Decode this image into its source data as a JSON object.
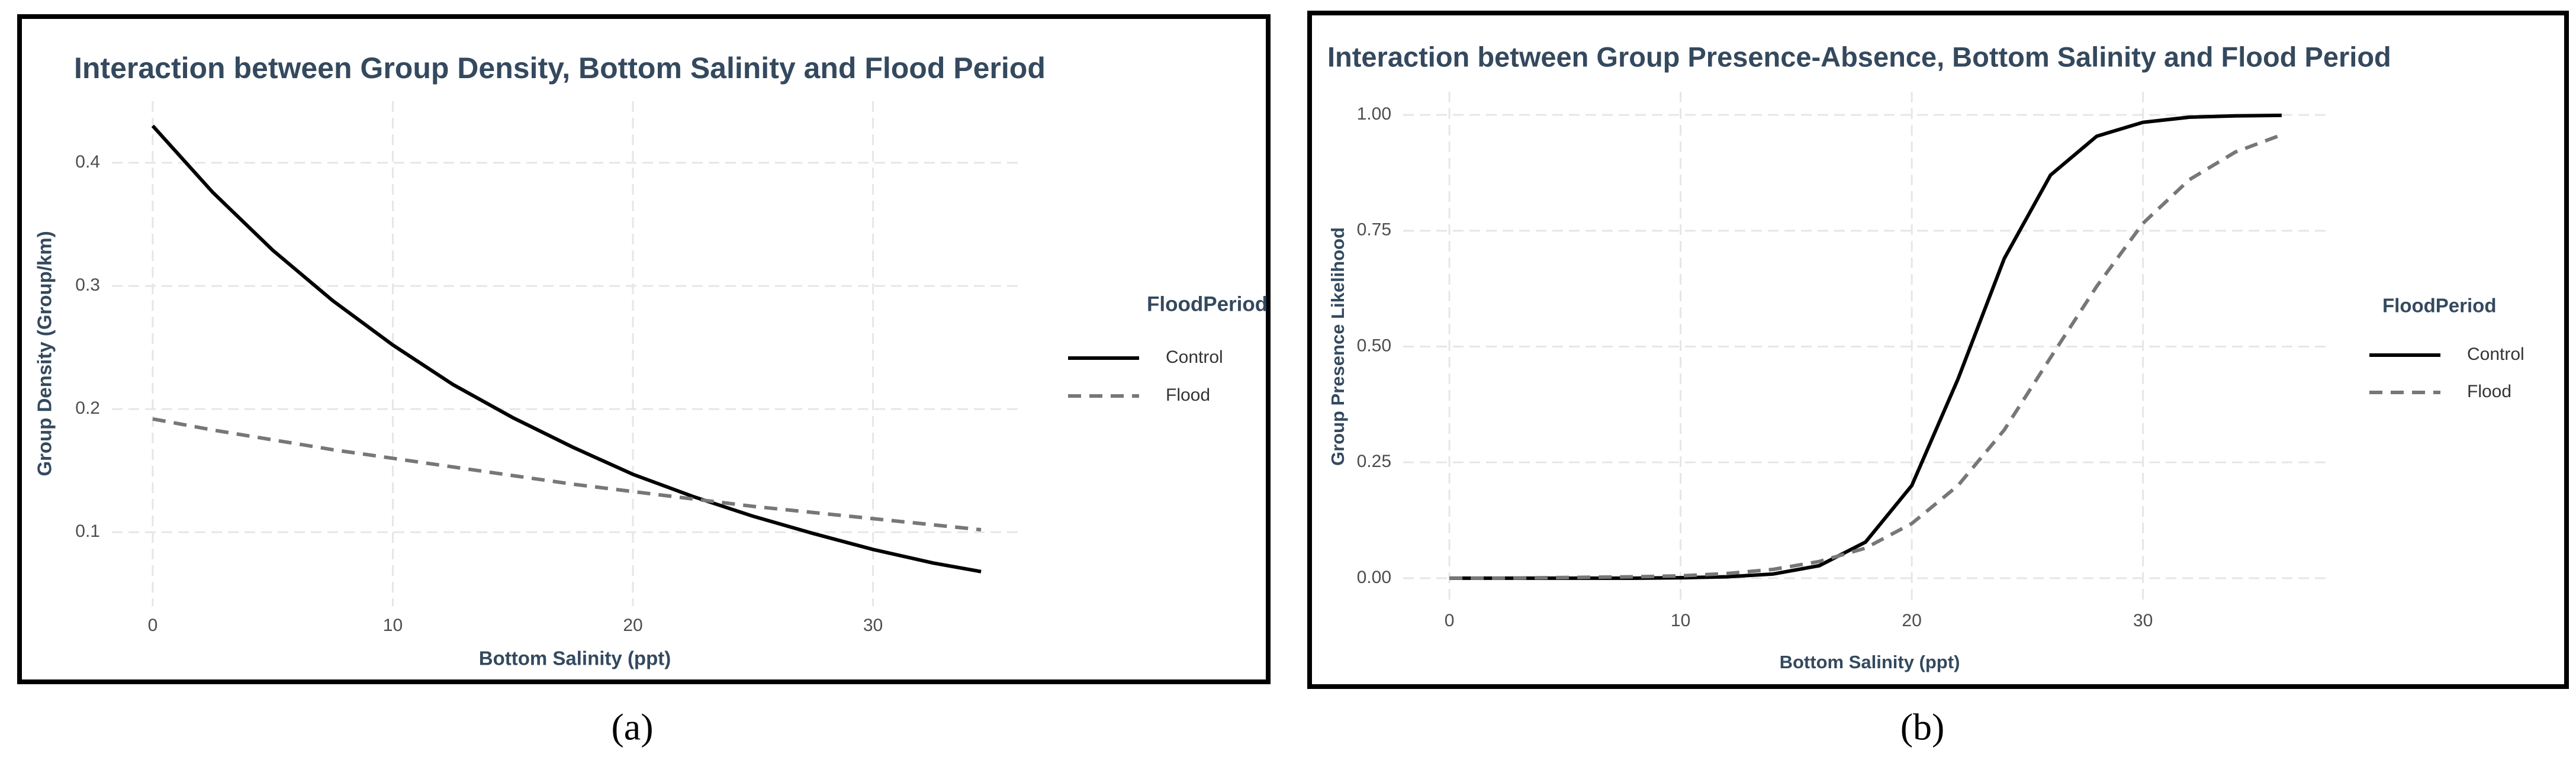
{
  "chart_data": [
    {
      "type": "line",
      "title": "Interaction between Group Density, Bottom Salinity and Flood Period",
      "x_label": "Bottom Salinity (ppt)",
      "y_label": "Group Density (Group/km)",
      "legend_title": "FloodPeriod",
      "caption": "(a)",
      "x": [
        0,
        2.5,
        5,
        7.5,
        10,
        12.5,
        15,
        17.5,
        20,
        22.5,
        25,
        27.5,
        30,
        32.5,
        34.5
      ],
      "series": [
        {
          "name": "Control",
          "color": "#000000",
          "line_style": "solid",
          "values": [
            0.43,
            0.376,
            0.329,
            0.288,
            0.252,
            0.22,
            0.193,
            0.169,
            0.147,
            0.129,
            0.113,
            0.099,
            0.086,
            0.075,
            0.068
          ]
        },
        {
          "name": "Flood",
          "color": "#777777",
          "line_style": "dashed",
          "values": [
            0.192,
            0.183,
            0.175,
            0.167,
            0.16,
            0.153,
            0.146,
            0.139,
            0.133,
            0.127,
            0.121,
            0.116,
            0.111,
            0.106,
            0.102
          ]
        }
      ],
      "xlim": [
        -1.7,
        36.2
      ],
      "xticks": [
        0,
        10,
        20,
        30
      ],
      "ylim": [
        0.04,
        0.45
      ],
      "yticks": [
        0.1,
        0.2,
        0.3,
        0.4
      ],
      "grid": true,
      "legend": "right"
    },
    {
      "type": "line",
      "title": "Interaction between Group Presence-Absence, Bottom Salinity and Flood Period",
      "x_label": "Bottom Salinity (ppt)",
      "y_label": "Group Presence Likelihood",
      "legend_title": "FloodPeriod",
      "caption": "(b)",
      "x": [
        0,
        2,
        4,
        6,
        8,
        10,
        12,
        14,
        16,
        18,
        20,
        22,
        24,
        26,
        28,
        30,
        32,
        34,
        36
      ],
      "series": [
        {
          "name": "Control",
          "color": "#000000",
          "line_style": "solid",
          "values": [
            0,
            0,
            0,
            0,
            0,
            0.001,
            0.003,
            0.009,
            0.027,
            0.078,
            0.2,
            0.43,
            0.69,
            0.87,
            0.954,
            0.984,
            0.995,
            0.998,
            0.999
          ]
        },
        {
          "name": "Flood",
          "color": "#777777",
          "line_style": "dashed",
          "values": [
            0,
            0,
            0.001,
            0.002,
            0.003,
            0.005,
            0.01,
            0.019,
            0.036,
            0.065,
            0.118,
            0.2,
            0.32,
            0.476,
            0.63,
            0.766,
            0.86,
            0.92,
            0.957
          ]
        }
      ],
      "xlim": [
        -2,
        38
      ],
      "xticks": [
        0,
        10,
        20,
        30
      ],
      "ylim": [
        -0.05,
        1.05
      ],
      "yticks": [
        {
          "value": 0,
          "label": "0.00"
        },
        {
          "value": 0.25,
          "label": "0.25"
        },
        {
          "value": 0.5,
          "label": "0.50"
        },
        {
          "value": 0.75,
          "label": "0.75"
        },
        {
          "value": 1,
          "label": "1.00"
        }
      ],
      "grid": true,
      "legend": "right"
    }
  ]
}
